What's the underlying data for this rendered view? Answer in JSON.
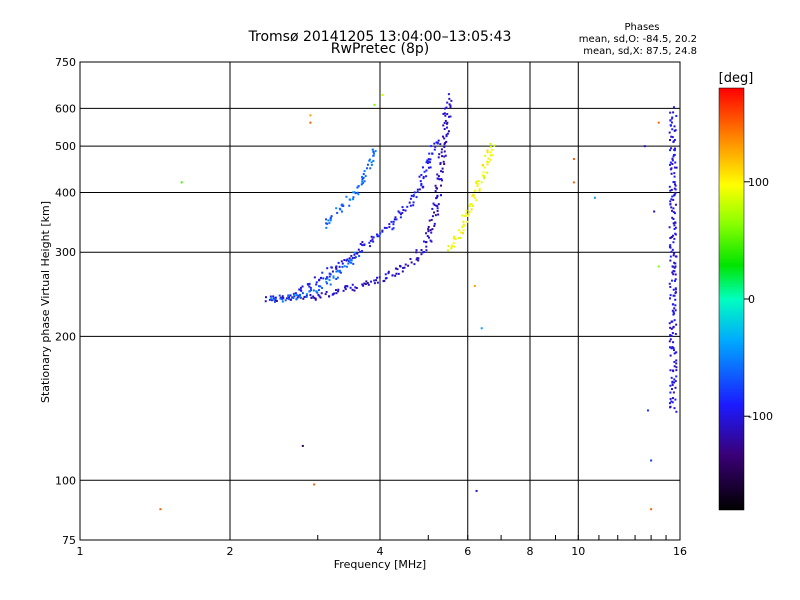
{
  "header": {
    "title": "Tromsø 20141205 13:04:00–13:05:43",
    "subtitle": "RwPretec (8p)",
    "phase_title": "Phases",
    "phase_o": "mean, sd,O: -84.5, 20.2",
    "phase_x": "mean, sd,X:  87.5, 24.8"
  },
  "chart_data": {
    "type": "scatter",
    "xlabel": "Frequency [MHz]",
    "ylabel": "Stationary phase Virtual Height [km]",
    "xscale": "log",
    "yscale": "log",
    "xlim": [
      1,
      16
    ],
    "ylim": [
      75,
      750
    ],
    "x_ticks": [
      1,
      2,
      4,
      6,
      8,
      10,
      16
    ],
    "x_tick_labels": [
      "1",
      "2",
      "4",
      "6",
      "8",
      "10",
      "16"
    ],
    "y_ticks": [
      75,
      100,
      200,
      300,
      400,
      500,
      600,
      750
    ],
    "y_tick_labels": [
      "75",
      "100",
      "200",
      "300",
      "400",
      "500",
      "600",
      "750"
    ],
    "grid": true,
    "colorbar": {
      "label": "[deg]",
      "range": [
        -180,
        180
      ],
      "ticks": [
        100,
        0,
        -100
      ],
      "tick_labels": [
        "100",
        "0",
        "-100"
      ]
    },
    "traces": [
      {
        "description": "O-mode E/F-layer trace",
        "phase_deg": -110,
        "x": [
          2.35,
          2.6,
          2.9,
          3.2,
          3.5,
          3.8,
          4.1,
          4.4,
          4.7,
          4.95,
          5.1,
          5.2,
          5.3,
          5.4,
          5.5
        ],
        "y": [
          240,
          240,
          242,
          246,
          252,
          258,
          266,
          276,
          290,
          310,
          340,
          380,
          450,
          530,
          640
        ]
      },
      {
        "description": "O-mode upper branch",
        "phase_deg": -95,
        "x": [
          2.7,
          3.0,
          3.3,
          3.6,
          3.9,
          4.2,
          4.5,
          4.8,
          5.0,
          5.2
        ],
        "y": [
          246,
          262,
          280,
          300,
          320,
          340,
          370,
          410,
          460,
          520
        ]
      },
      {
        "description": "O-mode lower branch",
        "phase_deg": -60,
        "x": [
          2.4,
          2.8,
          3.0,
          3.2,
          3.4,
          3.6
        ],
        "y": [
          238,
          244,
          252,
          262,
          278,
          298
        ]
      },
      {
        "description": "cyan echo patch",
        "phase_deg": -60,
        "x": [
          3.1,
          3.3,
          3.5,
          3.7,
          3.8,
          3.9
        ],
        "y": [
          340,
          365,
          390,
          420,
          455,
          500
        ]
      },
      {
        "description": "X-mode trace",
        "phase_deg": 95,
        "x": [
          5.5,
          5.7,
          5.9,
          6.1,
          6.3,
          6.5,
          6.7
        ],
        "y": [
          305,
          320,
          345,
          375,
          410,
          450,
          510
        ]
      },
      {
        "description": "vertical echo column near 15.5 MHz",
        "phase_deg": -100,
        "x": [
          15.5,
          15.5,
          15.5,
          15.5,
          15.5,
          15.5,
          15.5,
          15.5
        ],
        "y": [
          140,
          160,
          180,
          210,
          250,
          300,
          350,
          600
        ]
      }
    ],
    "scattered_points": [
      {
        "x": 1.6,
        "y": 420,
        "phase_deg": 45
      },
      {
        "x": 2.9,
        "y": 580,
        "phase_deg": 130
      },
      {
        "x": 2.9,
        "y": 560,
        "phase_deg": 150
      },
      {
        "x": 2.8,
        "y": 118,
        "phase_deg": -150
      },
      {
        "x": 2.95,
        "y": 98,
        "phase_deg": 150
      },
      {
        "x": 1.45,
        "y": 87,
        "phase_deg": 150
      },
      {
        "x": 3.9,
        "y": 610,
        "phase_deg": 60
      },
      {
        "x": 4.05,
        "y": 640,
        "phase_deg": 80
      },
      {
        "x": 6.4,
        "y": 208,
        "phase_deg": -40
      },
      {
        "x": 6.25,
        "y": 95,
        "phase_deg": -110
      },
      {
        "x": 6.2,
        "y": 255,
        "phase_deg": 130
      },
      {
        "x": 9.8,
        "y": 470,
        "phase_deg": 150
      },
      {
        "x": 9.8,
        "y": 420,
        "phase_deg": 150
      },
      {
        "x": 10.8,
        "y": 390,
        "phase_deg": -40
      },
      {
        "x": 13.6,
        "y": 500,
        "phase_deg": -110
      },
      {
        "x": 13.8,
        "y": 140,
        "phase_deg": -80
      },
      {
        "x": 14.0,
        "y": 110,
        "phase_deg": -80
      },
      {
        "x": 14.0,
        "y": 87,
        "phase_deg": 150
      },
      {
        "x": 14.2,
        "y": 365,
        "phase_deg": -110
      },
      {
        "x": 14.5,
        "y": 560,
        "phase_deg": 150
      },
      {
        "x": 14.5,
        "y": 280,
        "phase_deg": 60
      }
    ]
  }
}
